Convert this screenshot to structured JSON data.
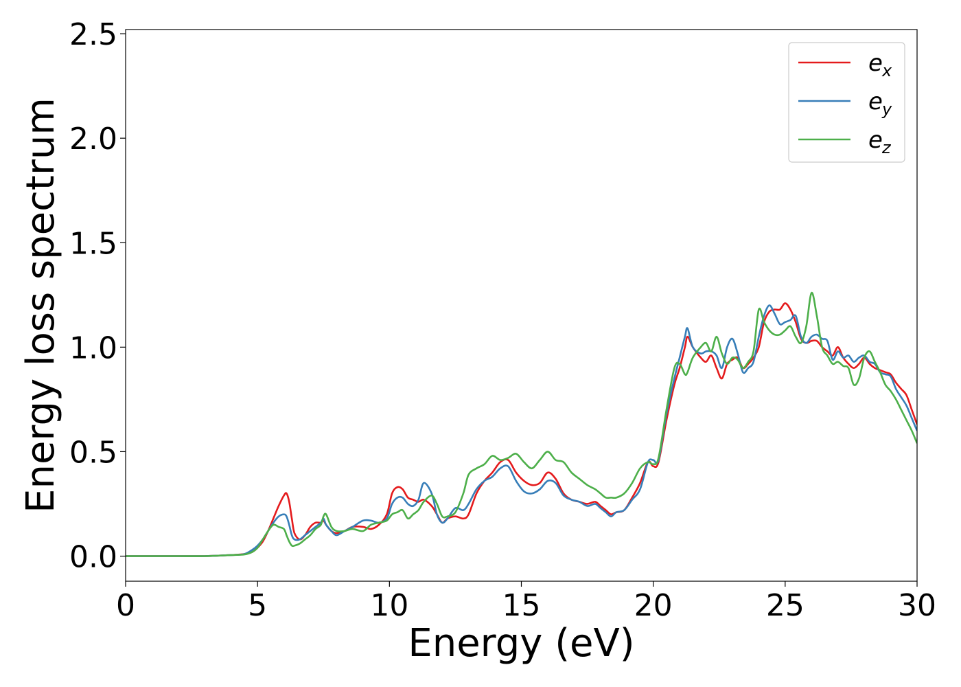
{
  "chart_data": {
    "type": "line",
    "xlabel": "Energy (eV)",
    "ylabel": "Energy loss spectrum",
    "xlim": [
      0,
      30
    ],
    "ylim": [
      -0.12,
      2.52
    ],
    "xticks": [
      "0",
      "5",
      "10",
      "15",
      "20",
      "25",
      "30"
    ],
    "yticks": [
      "0.0",
      "0.5",
      "1.0",
      "1.5",
      "2.0",
      "2.5"
    ],
    "grid": false,
    "legend_position": "top-right",
    "series": [
      {
        "name": "e_x",
        "label_base": "e",
        "label_sub": "x",
        "color": "#e41a1c",
        "x": [
          0,
          1,
          2,
          3,
          4,
          4.5,
          4.8,
          5.0,
          5.2,
          5.4,
          5.6,
          5.8,
          6.0,
          6.1,
          6.2,
          6.3,
          6.4,
          6.6,
          6.8,
          7.0,
          7.2,
          7.4,
          7.5,
          7.6,
          7.8,
          8.0,
          8.3,
          8.6,
          9.0,
          9.3,
          9.6,
          9.9,
          10.1,
          10.3,
          10.5,
          10.7,
          10.9,
          11.1,
          11.3,
          11.6,
          11.8,
          12.0,
          12.2,
          12.5,
          12.8,
          13.0,
          13.3,
          13.6,
          13.9,
          14.2,
          14.5,
          14.8,
          15.1,
          15.4,
          15.7,
          16.0,
          16.3,
          16.6,
          16.9,
          17.2,
          17.5,
          17.8,
          18.0,
          18.2,
          18.4,
          18.6,
          18.9,
          19.2,
          19.5,
          19.8,
          20.0,
          20.2,
          20.5,
          20.8,
          21.0,
          21.2,
          21.3,
          21.5,
          21.8,
          22.0,
          22.2,
          22.4,
          22.6,
          22.8,
          23.0,
          23.2,
          23.4,
          23.6,
          23.8,
          24.0,
          24.2,
          24.4,
          24.6,
          24.8,
          25.0,
          25.2,
          25.4,
          25.6,
          25.8,
          26.0,
          26.2,
          26.4,
          26.6,
          26.8,
          27.0,
          27.2,
          27.4,
          27.6,
          27.8,
          28.0,
          28.2,
          28.4,
          28.6,
          28.8,
          29.0,
          29.2,
          29.4,
          29.6,
          29.8,
          30.0
        ],
        "y": [
          0,
          0,
          0,
          0,
          0.005,
          0.01,
          0.02,
          0.04,
          0.07,
          0.12,
          0.18,
          0.24,
          0.29,
          0.3,
          0.26,
          0.18,
          0.11,
          0.08,
          0.1,
          0.14,
          0.16,
          0.16,
          0.17,
          0.15,
          0.12,
          0.11,
          0.12,
          0.14,
          0.14,
          0.13,
          0.15,
          0.2,
          0.3,
          0.33,
          0.32,
          0.28,
          0.27,
          0.26,
          0.27,
          0.24,
          0.2,
          0.16,
          0.18,
          0.19,
          0.18,
          0.2,
          0.3,
          0.36,
          0.4,
          0.45,
          0.46,
          0.4,
          0.36,
          0.34,
          0.35,
          0.4,
          0.37,
          0.3,
          0.27,
          0.26,
          0.25,
          0.26,
          0.24,
          0.22,
          0.2,
          0.21,
          0.22,
          0.28,
          0.35,
          0.45,
          0.43,
          0.45,
          0.65,
          0.82,
          0.9,
          1.0,
          1.05,
          1.0,
          0.95,
          0.93,
          0.96,
          0.9,
          0.85,
          0.92,
          0.94,
          0.95,
          0.9,
          0.92,
          0.95,
          1.0,
          1.12,
          1.17,
          1.18,
          1.18,
          1.21,
          1.18,
          1.12,
          1.04,
          1.02,
          1.03,
          1.03,
          1.0,
          0.98,
          0.96,
          1.0,
          0.95,
          0.92,
          0.9,
          0.92,
          0.95,
          0.92,
          0.9,
          0.89,
          0.88,
          0.87,
          0.83,
          0.8,
          0.77,
          0.7,
          0.63
        ]
      },
      {
        "name": "e_y",
        "label_base": "e",
        "label_sub": "y",
        "color": "#377eb8",
        "x": [
          0,
          1,
          2,
          3,
          4,
          4.5,
          4.8,
          5.0,
          5.2,
          5.4,
          5.6,
          5.8,
          6.0,
          6.1,
          6.2,
          6.3,
          6.4,
          6.6,
          6.8,
          7.0,
          7.2,
          7.4,
          7.5,
          7.6,
          7.8,
          8.0,
          8.3,
          8.6,
          9.0,
          9.3,
          9.6,
          9.9,
          10.1,
          10.3,
          10.5,
          10.7,
          10.9,
          11.1,
          11.3,
          11.6,
          11.8,
          12.0,
          12.2,
          12.5,
          12.8,
          13.0,
          13.3,
          13.6,
          13.9,
          14.2,
          14.5,
          14.8,
          15.1,
          15.4,
          15.7,
          16.0,
          16.3,
          16.6,
          16.9,
          17.2,
          17.5,
          17.8,
          18.0,
          18.2,
          18.4,
          18.6,
          18.9,
          19.2,
          19.5,
          19.8,
          20.0,
          20.2,
          20.5,
          20.8,
          21.0,
          21.2,
          21.3,
          21.5,
          21.8,
          22.0,
          22.2,
          22.4,
          22.6,
          22.8,
          23.0,
          23.2,
          23.4,
          23.6,
          23.8,
          24.0,
          24.2,
          24.4,
          24.6,
          24.8,
          25.0,
          25.2,
          25.4,
          25.6,
          25.8,
          26.0,
          26.2,
          26.4,
          26.6,
          26.8,
          27.0,
          27.2,
          27.4,
          27.6,
          27.8,
          28.0,
          28.2,
          28.4,
          28.6,
          28.8,
          29.0,
          29.2,
          29.4,
          29.6,
          29.8,
          30.0
        ],
        "y": [
          0,
          0,
          0,
          0,
          0.005,
          0.01,
          0.03,
          0.05,
          0.08,
          0.12,
          0.16,
          0.19,
          0.2,
          0.19,
          0.15,
          0.1,
          0.08,
          0.08,
          0.1,
          0.12,
          0.14,
          0.16,
          0.18,
          0.15,
          0.12,
          0.1,
          0.12,
          0.14,
          0.17,
          0.17,
          0.16,
          0.18,
          0.25,
          0.28,
          0.28,
          0.25,
          0.24,
          0.27,
          0.35,
          0.3,
          0.2,
          0.16,
          0.18,
          0.23,
          0.22,
          0.25,
          0.32,
          0.36,
          0.38,
          0.42,
          0.43,
          0.36,
          0.31,
          0.3,
          0.32,
          0.36,
          0.35,
          0.29,
          0.27,
          0.26,
          0.24,
          0.25,
          0.23,
          0.21,
          0.19,
          0.21,
          0.22,
          0.27,
          0.32,
          0.45,
          0.46,
          0.46,
          0.68,
          0.85,
          0.95,
          1.05,
          1.09,
          1.0,
          0.97,
          0.98,
          0.98,
          0.96,
          0.9,
          1.0,
          1.04,
          0.97,
          0.88,
          0.9,
          0.93,
          1.05,
          1.15,
          1.2,
          1.16,
          1.11,
          1.12,
          1.13,
          1.15,
          1.05,
          1.02,
          1.05,
          1.06,
          1.04,
          1.03,
          0.94,
          0.98,
          0.95,
          0.96,
          0.93,
          0.95,
          0.96,
          0.93,
          0.92,
          0.88,
          0.87,
          0.86,
          0.8,
          0.76,
          0.72,
          0.66,
          0.6
        ]
      },
      {
        "name": "e_z",
        "label_base": "e",
        "label_sub": "z",
        "color": "#4daf4a",
        "x": [
          0,
          1,
          2,
          3,
          4,
          4.5,
          4.8,
          5.0,
          5.2,
          5.4,
          5.6,
          5.8,
          6.0,
          6.1,
          6.2,
          6.3,
          6.4,
          6.6,
          6.8,
          7.0,
          7.2,
          7.4,
          7.5,
          7.6,
          7.8,
          8.0,
          8.3,
          8.6,
          9.0,
          9.3,
          9.6,
          9.9,
          10.1,
          10.3,
          10.5,
          10.7,
          10.9,
          11.1,
          11.3,
          11.6,
          11.8,
          12.0,
          12.2,
          12.5,
          12.8,
          13.0,
          13.3,
          13.6,
          13.9,
          14.2,
          14.5,
          14.8,
          15.1,
          15.4,
          15.7,
          16.0,
          16.3,
          16.6,
          16.9,
          17.2,
          17.5,
          17.8,
          18.0,
          18.2,
          18.4,
          18.6,
          18.9,
          19.2,
          19.5,
          19.8,
          20.0,
          20.2,
          20.5,
          20.8,
          21.0,
          21.2,
          21.3,
          21.5,
          21.8,
          22.0,
          22.2,
          22.4,
          22.6,
          22.8,
          23.0,
          23.2,
          23.4,
          23.6,
          23.8,
          24.0,
          24.2,
          24.4,
          24.6,
          24.8,
          25.0,
          25.2,
          25.4,
          25.6,
          25.8,
          26.0,
          26.2,
          26.4,
          26.6,
          26.8,
          27.0,
          27.2,
          27.4,
          27.6,
          27.8,
          28.0,
          28.2,
          28.4,
          28.6,
          28.8,
          29.0,
          29.2,
          29.4,
          29.6,
          29.8,
          30.0
        ],
        "y": [
          0,
          0,
          0,
          0,
          0.005,
          0.008,
          0.02,
          0.04,
          0.08,
          0.12,
          0.15,
          0.14,
          0.13,
          0.1,
          0.07,
          0.05,
          0.05,
          0.06,
          0.08,
          0.1,
          0.13,
          0.15,
          0.19,
          0.2,
          0.14,
          0.12,
          0.12,
          0.13,
          0.12,
          0.15,
          0.16,
          0.17,
          0.2,
          0.21,
          0.22,
          0.18,
          0.2,
          0.22,
          0.26,
          0.29,
          0.25,
          0.19,
          0.19,
          0.21,
          0.3,
          0.39,
          0.42,
          0.44,
          0.48,
          0.46,
          0.47,
          0.49,
          0.45,
          0.42,
          0.46,
          0.5,
          0.46,
          0.45,
          0.4,
          0.37,
          0.34,
          0.32,
          0.3,
          0.28,
          0.28,
          0.28,
          0.3,
          0.35,
          0.42,
          0.45,
          0.44,
          0.47,
          0.7,
          0.9,
          0.92,
          0.87,
          0.88,
          0.95,
          1.0,
          1.02,
          0.98,
          1.05,
          0.97,
          0.92,
          0.95,
          0.94,
          0.9,
          0.93,
          0.98,
          1.18,
          1.12,
          1.08,
          1.06,
          1.06,
          1.08,
          1.1,
          1.05,
          1.02,
          1.1,
          1.26,
          1.15,
          1.0,
          0.96,
          0.92,
          0.93,
          0.91,
          0.9,
          0.82,
          0.85,
          0.95,
          0.98,
          0.93,
          0.88,
          0.82,
          0.79,
          0.75,
          0.7,
          0.65,
          0.6,
          0.54
        ]
      }
    ]
  }
}
